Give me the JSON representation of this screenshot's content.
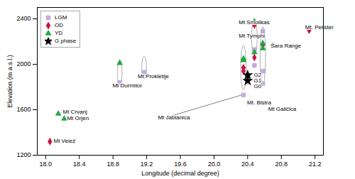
{
  "chart_data": {
    "type": "scatter",
    "xlabel": "Longitude (decimal degree)",
    "ylabel": "Elevation (m a.s.l.)",
    "xlim": [
      17.9,
      21.3
    ],
    "ylim": [
      1200,
      2500
    ],
    "xticks": [
      {
        "value": 18.0,
        "label": "18.0"
      },
      18.4,
      18.8,
      19.2,
      19.6,
      {
        "value": 20.0,
        "label": "20.0"
      },
      20.4,
      20.8,
      21.2
    ],
    "yticks": [
      1200,
      1600,
      2000,
      2400
    ],
    "grid": false,
    "legend": "upper left",
    "series": [
      {
        "name": "LGM",
        "color": "#c8a8e8",
        "marker": "square",
        "x": [
          18.88,
          19.17,
          20.35,
          20.48,
          20.48,
          20.58,
          20.58,
          20.58
        ],
        "values": [
          1840,
          1930,
          1730,
          2130,
          1990,
          1940,
          2290,
          1830
        ]
      },
      {
        "name": "OD",
        "color": "#cc1144",
        "marker": "diamond",
        "x": [
          18.05,
          20.35,
          20.35,
          20.48,
          20.48,
          20.58,
          21.13
        ],
        "values": [
          1320,
          1970,
          1940,
          2060,
          2345,
          2170,
          2300
        ]
      },
      {
        "name": "YD",
        "color": "#22aa44",
        "marker": "triangle",
        "x": [
          18.15,
          18.22,
          18.88,
          20.35,
          20.35,
          20.48,
          20.48,
          20.58,
          20.58
        ],
        "values": [
          1565,
          1520,
          2010,
          2050,
          2035,
          2105,
          2375,
          2185,
          2140
        ]
      },
      {
        "name": "G phase",
        "color": "#000000",
        "marker": "star",
        "x": [
          20.4,
          20.4
        ],
        "values": [
          1905,
          1855
        ]
      }
    ],
    "ellipses": [
      {
        "cx": 18.88,
        "cy": 1925,
        "width": 0.055,
        "height": 230
      },
      {
        "cx": 19.17,
        "cy": 1970,
        "width": 0.055,
        "height": 200
      },
      {
        "cx": 20.35,
        "cy": 1970,
        "width": 0.065,
        "height": 390
      },
      {
        "cx": 20.48,
        "cy": 2240,
        "width": 0.065,
        "height": 310
      },
      {
        "cx": 20.58,
        "cy": 2075,
        "width": 0.065,
        "height": 510
      },
      {
        "cx": 20.4,
        "cy": 1880,
        "width": 0.06,
        "height": 110
      }
    ],
    "connector": {
      "x1": 19.42,
      "y1": 1530,
      "x2": 20.33,
      "y2": 1730
    },
    "annotations": [
      {
        "text": "Mt Crvanj",
        "x": 18.17,
        "y": 1580
      },
      {
        "text": "Mt Orjen",
        "x": 18.22,
        "y": 1525
      },
      {
        "text": "Mt Velež",
        "x": 18.06,
        "y": 1325
      },
      {
        "text": "Mt Durmitor",
        "x": 18.76,
        "y": 1810
      },
      {
        "text": "Mt Prokletije",
        "x": 19.06,
        "y": 1895
      },
      {
        "text": "Mt Jablanica",
        "x": 19.3,
        "y": 1530
      },
      {
        "text": "Mt Smolikas",
        "x": 20.26,
        "y": 2370
      },
      {
        "text": "Mt Tymphi",
        "x": 20.26,
        "y": 2250
      },
      {
        "text": "Mt. Bistra",
        "x": 20.36,
        "y": 1665
      },
      {
        "text": "G2",
        "x": 20.44,
        "y": 1908
      },
      {
        "text": "G1",
        "x": 20.44,
        "y": 1858
      },
      {
        "text": "G0",
        "x": 20.44,
        "y": 1808
      },
      {
        "text": "Mt Galičica",
        "x": 20.61,
        "y": 1605
      },
      {
        "text": "Šara Range",
        "x": 20.64,
        "y": 2160
      },
      {
        "text": "Mt. Pelister",
        "x": 21.05,
        "y": 2325
      }
    ]
  }
}
